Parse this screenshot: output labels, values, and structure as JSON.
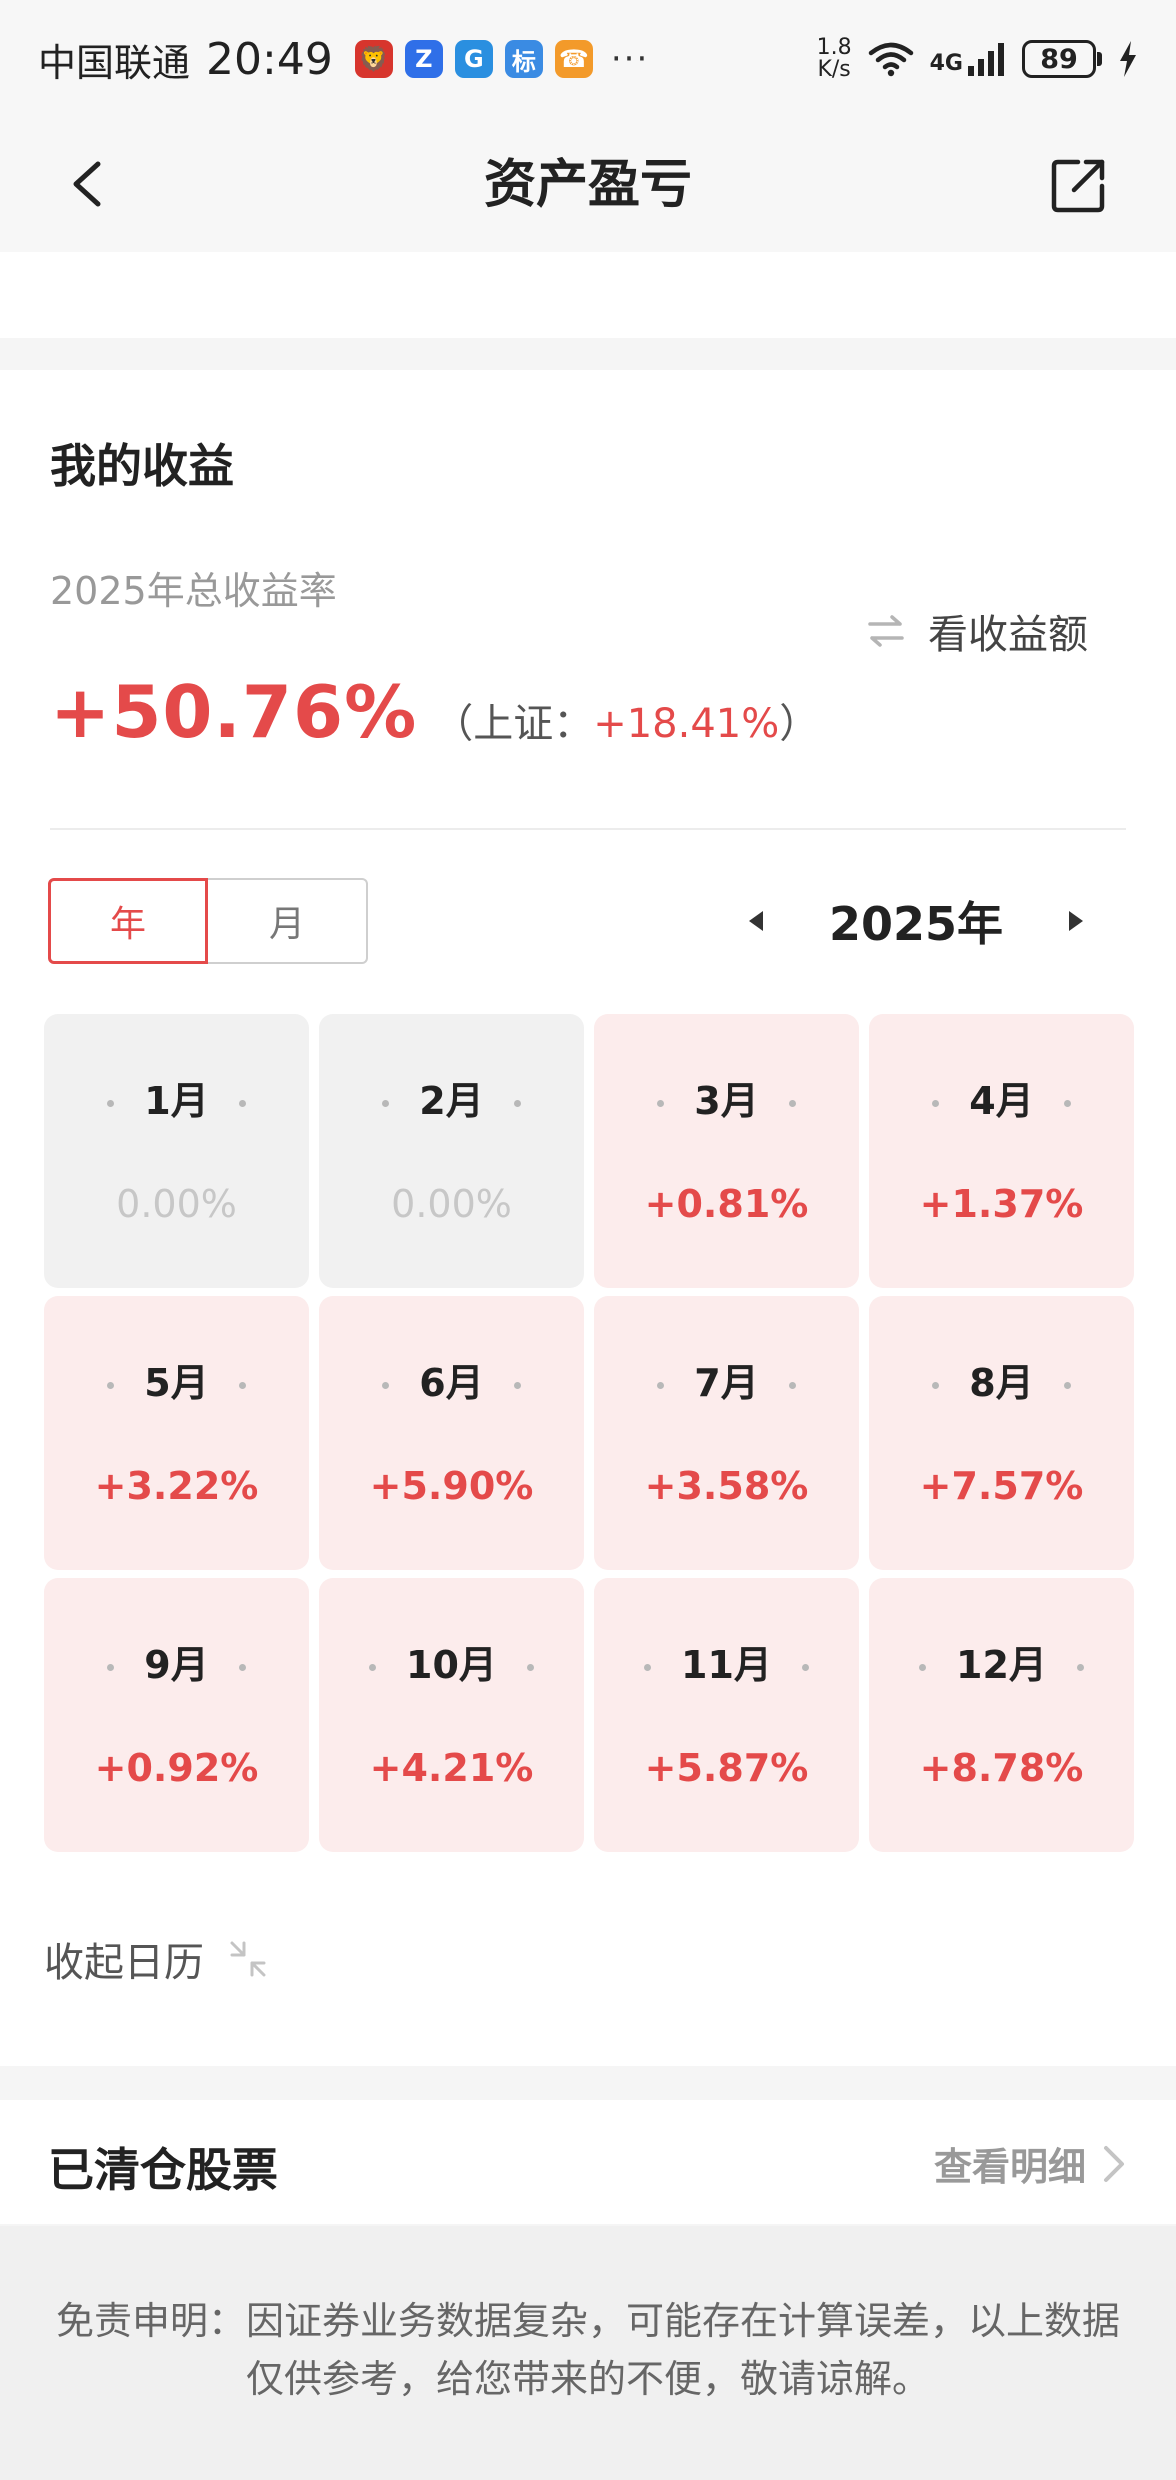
{
  "status_bar": {
    "carrier": "中国联通",
    "time": "20:49",
    "app_icons": [
      {
        "name": "red-app-icon",
        "color": "#d7352d",
        "glyph": "🦁"
      },
      {
        "name": "z-app-icon",
        "color": "#2f6fe8",
        "glyph": "Z"
      },
      {
        "name": "g-app-icon",
        "color": "#2a8fe0",
        "glyph": "G"
      },
      {
        "name": "biao-app-icon",
        "color": "#3a8be3",
        "glyph": "标"
      },
      {
        "name": "orange-app-icon",
        "color": "#f39a2a",
        "glyph": "☎"
      }
    ],
    "more": "···",
    "speed_value": "1.8",
    "speed_unit": "K/s",
    "network": "4G",
    "battery": "89"
  },
  "nav": {
    "title": "资产盈亏"
  },
  "profit": {
    "title": "我的收益",
    "rate_label": "2025年总收益率",
    "switch_label": "看收益额",
    "rate_value": "+50.76%",
    "bench_prefix": "（上证：",
    "bench_value": "+18.41%",
    "bench_suffix": "）"
  },
  "toggle": {
    "year": "年",
    "month": "月"
  },
  "year_nav": {
    "year": "2025年"
  },
  "months": [
    {
      "label": "1月",
      "pct": "0.00%",
      "zero": true
    },
    {
      "label": "2月",
      "pct": "0.00%",
      "zero": true
    },
    {
      "label": "3月",
      "pct": "+0.81%",
      "zero": false
    },
    {
      "label": "4月",
      "pct": "+1.37%",
      "zero": false
    },
    {
      "label": "5月",
      "pct": "+3.22%",
      "zero": false
    },
    {
      "label": "6月",
      "pct": "+5.90%",
      "zero": false
    },
    {
      "label": "7月",
      "pct": "+3.58%",
      "zero": false
    },
    {
      "label": "8月",
      "pct": "+7.57%",
      "zero": false
    },
    {
      "label": "9月",
      "pct": "+0.92%",
      "zero": false
    },
    {
      "label": "10月",
      "pct": "+4.21%",
      "zero": false
    },
    {
      "label": "11月",
      "pct": "+5.87%",
      "zero": false
    },
    {
      "label": "12月",
      "pct": "+8.78%",
      "zero": false
    }
  ],
  "collapse": {
    "label": "收起日历"
  },
  "cleared": {
    "title": "已清仓股票",
    "link": "查看明细"
  },
  "disclaimer": {
    "text": "免责申明：因证券业务数据复杂，可能存在计算误差，以上数据仅供参考，给您带来的不便，敬请谅解。"
  },
  "colors": {
    "accent_red": "#e44a4a",
    "positive_cell_bg": "#fcecec",
    "zero_cell_bg": "#f1f1f1"
  }
}
